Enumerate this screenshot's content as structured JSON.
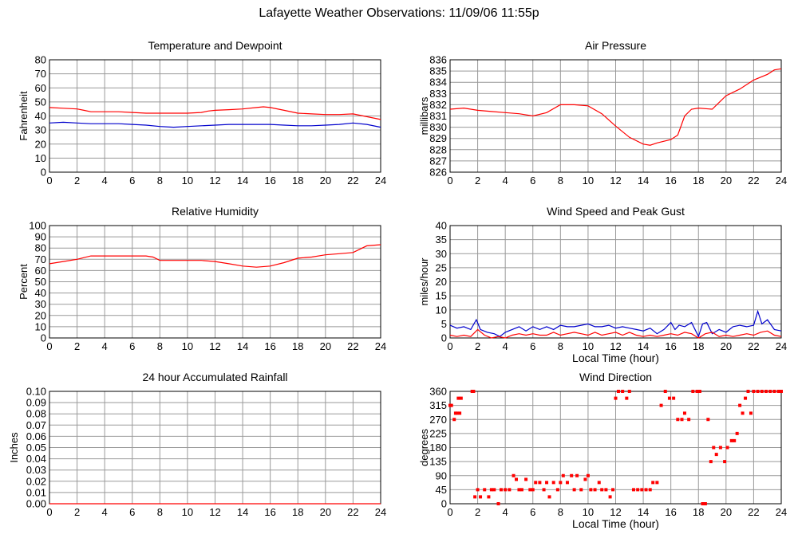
{
  "page": {
    "title": "Lafayette Weather Observations: 11/09/06 11:55p"
  },
  "colors": {
    "red": "#ff0000",
    "blue": "#0000cc",
    "grid": "#999999"
  },
  "chart_data": [
    {
      "id": "temp",
      "type": "line",
      "title": "Temperature and Dewpoint",
      "xlabel": "",
      "ylabel": "Fahrenheit",
      "xlim": [
        0,
        24
      ],
      "ylim": [
        0,
        80
      ],
      "yticks": [
        0,
        10,
        20,
        30,
        40,
        50,
        60,
        70,
        80
      ],
      "ytick_labels": [
        "0",
        "10",
        "20",
        "30",
        "40",
        "50",
        "60",
        "70",
        "80"
      ],
      "xticks": [
        0,
        2,
        4,
        6,
        8,
        10,
        12,
        14,
        16,
        18,
        20,
        22,
        24
      ],
      "grid": true,
      "series": [
        {
          "color": "#ff0000",
          "x": [
            0,
            1,
            2,
            2.5,
            3,
            4,
            5,
            6,
            7,
            8,
            9,
            10,
            11,
            11.5,
            12,
            13,
            14,
            15,
            15.5,
            16,
            17,
            18,
            19,
            20,
            21,
            22,
            23,
            24
          ],
          "y": [
            46,
            45.5,
            45,
            44,
            43,
            43,
            43,
            42.5,
            42,
            42,
            42,
            42,
            42.5,
            43.5,
            44,
            44.5,
            45,
            46,
            46.5,
            46,
            44,
            42,
            41.5,
            41,
            41,
            41.5,
            39.5,
            37.5
          ]
        },
        {
          "color": "#0000cc",
          "x": [
            0,
            1,
            2,
            3,
            4,
            5,
            6,
            7,
            8,
            9,
            10,
            11,
            12,
            13,
            14,
            15,
            16,
            17,
            18,
            19,
            20,
            21,
            22,
            23,
            24
          ],
          "y": [
            35,
            35.5,
            35,
            34.5,
            34.5,
            34.5,
            34,
            33.5,
            32.5,
            32,
            32.5,
            33,
            33.5,
            34,
            34,
            34,
            34,
            33.5,
            33,
            33,
            33.5,
            34,
            35,
            34,
            32
          ]
        }
      ]
    },
    {
      "id": "pressure",
      "type": "line",
      "title": "Air Pressure",
      "xlabel": "",
      "ylabel": "millibars",
      "xlim": [
        0,
        24
      ],
      "ylim": [
        826,
        836
      ],
      "yticks": [
        826,
        827,
        828,
        829,
        830,
        831,
        832,
        833,
        834,
        835,
        836
      ],
      "ytick_labels": [
        "826",
        "827",
        "828",
        "829",
        "830",
        "831",
        "832",
        "833",
        "834",
        "835",
        "836"
      ],
      "xticks": [
        0,
        2,
        4,
        6,
        8,
        10,
        12,
        14,
        16,
        18,
        20,
        22,
        24
      ],
      "grid": true,
      "series": [
        {
          "color": "#ff0000",
          "x": [
            0,
            1,
            2,
            3,
            4,
            5,
            6,
            7,
            8,
            9,
            10,
            11,
            12,
            13,
            14,
            14.5,
            15,
            16,
            16.5,
            17,
            17.5,
            18,
            19,
            20,
            21,
            22,
            23,
            23.5,
            24
          ],
          "y": [
            831.6,
            831.7,
            831.5,
            831.4,
            831.3,
            831.2,
            831.0,
            831.3,
            832.0,
            832.0,
            831.9,
            831.2,
            830.1,
            829.1,
            828.5,
            828.4,
            828.6,
            828.9,
            829.3,
            831.0,
            831.6,
            831.7,
            831.6,
            832.8,
            833.4,
            834.2,
            834.7,
            835.1,
            835.2
          ]
        }
      ]
    },
    {
      "id": "humidity",
      "type": "line",
      "title": "Relative Humidity",
      "xlabel": "",
      "ylabel": "Percent",
      "xlim": [
        0,
        24
      ],
      "ylim": [
        0,
        100
      ],
      "yticks": [
        0,
        10,
        20,
        30,
        40,
        50,
        60,
        70,
        80,
        90,
        100
      ],
      "ytick_labels": [
        "0",
        "10",
        "20",
        "30",
        "40",
        "50",
        "60",
        "70",
        "80",
        "90",
        "100"
      ],
      "xticks": [
        0,
        2,
        4,
        6,
        8,
        10,
        12,
        14,
        16,
        18,
        20,
        22,
        24
      ],
      "grid": true,
      "series": [
        {
          "color": "#ff0000",
          "x": [
            0,
            1,
            2,
            3,
            4,
            5,
            6,
            7,
            7.5,
            8,
            9,
            10,
            11,
            12,
            13,
            14,
            15,
            16,
            17,
            18,
            19,
            20,
            21,
            22,
            23,
            24
          ],
          "y": [
            66,
            68,
            70,
            73,
            73,
            73,
            73,
            73,
            72,
            69,
            69,
            69,
            69,
            68,
            66,
            64,
            63,
            64,
            67,
            71,
            72,
            74,
            75,
            76,
            82,
            83
          ]
        }
      ]
    },
    {
      "id": "wind",
      "type": "line",
      "title": "Wind Speed and Peak Gust",
      "xlabel": "Local Time (hour)",
      "ylabel": "miles/hour",
      "xlim": [
        0,
        24
      ],
      "ylim": [
        0,
        40
      ],
      "yticks": [
        0,
        5,
        10,
        15,
        20,
        25,
        30,
        35,
        40
      ],
      "ytick_labels": [
        "0",
        "5",
        "10",
        "15",
        "20",
        "25",
        "30",
        "35",
        "40"
      ],
      "xticks": [
        0,
        2,
        4,
        6,
        8,
        10,
        12,
        14,
        16,
        18,
        20,
        22,
        24
      ],
      "grid": true,
      "series": [
        {
          "color": "#0000cc",
          "x": [
            0,
            0.5,
            1,
            1.5,
            1.9,
            2.2,
            2.7,
            3.2,
            3.6,
            4,
            4.5,
            5,
            5.5,
            6,
            6.5,
            7,
            7.5,
            8,
            8.5,
            9,
            9.5,
            10,
            10.5,
            11,
            11.5,
            12,
            12.5,
            13,
            13.5,
            14,
            14.5,
            15,
            15.5,
            16,
            16.3,
            16.6,
            17,
            17.5,
            18,
            18.3,
            18.6,
            19,
            19.5,
            20,
            20.5,
            21,
            21.5,
            22,
            22.3,
            22.6,
            23,
            23.5,
            24
          ],
          "y": [
            4.5,
            3.5,
            4,
            3,
            6.5,
            3,
            2,
            1.5,
            0.5,
            2,
            3,
            4,
            2.5,
            4,
            3,
            4,
            3,
            4.5,
            4,
            4,
            4.5,
            5,
            4,
            4,
            4.5,
            3.5,
            4,
            3.5,
            3,
            2.5,
            3.5,
            1.5,
            3,
            5.5,
            3,
            4.5,
            4,
            5.5,
            0.5,
            5,
            5.5,
            1.5,
            3,
            2,
            4,
            4.5,
            4,
            4.5,
            9.5,
            5,
            6.5,
            3,
            2.5
          ]
        },
        {
          "color": "#ff0000",
          "x": [
            0,
            0.5,
            1,
            1.5,
            2,
            2.5,
            3,
            3.5,
            4,
            4.5,
            5,
            5.5,
            6,
            6.5,
            7,
            7.5,
            8,
            8.5,
            9,
            9.5,
            10,
            10.5,
            11,
            11.5,
            12,
            12.5,
            13,
            13.5,
            14,
            14.5,
            15,
            15.5,
            16,
            16.5,
            17,
            17.5,
            18,
            18.5,
            19,
            19.5,
            20,
            20.5,
            21,
            21.5,
            22,
            22.5,
            23,
            23.5,
            24
          ],
          "y": [
            1,
            0.5,
            1,
            0.5,
            3,
            1,
            0,
            0.5,
            0,
            1,
            1.5,
            1,
            1.5,
            1,
            1,
            2,
            1,
            1.5,
            2,
            1.5,
            1,
            2,
            1,
            1.5,
            2,
            1,
            2,
            1,
            0.5,
            1,
            0.5,
            1,
            1.5,
            1,
            2,
            1.5,
            0,
            1.5,
            2,
            0.5,
            1,
            0.5,
            1,
            1.5,
            1,
            2,
            2.5,
            1,
            0.5
          ]
        }
      ]
    },
    {
      "id": "rain",
      "type": "line",
      "title": "24 hour Accumulated Rainfall",
      "xlabel": "",
      "ylabel": "Inches",
      "xlim": [
        0,
        24
      ],
      "ylim": [
        0,
        0.1
      ],
      "yticks": [
        0,
        0.01,
        0.02,
        0.03,
        0.04,
        0.05,
        0.06,
        0.07,
        0.08,
        0.09,
        0.1
      ],
      "ytick_labels": [
        "0.00",
        "0.01",
        "0.02",
        "0.03",
        "0.04",
        "0.05",
        "0.06",
        "0.07",
        "0.08",
        "0.09",
        "0.10"
      ],
      "xticks": [
        0,
        2,
        4,
        6,
        8,
        10,
        12,
        14,
        16,
        18,
        20,
        22,
        24
      ],
      "grid": true,
      "series": [
        {
          "color": "#ff0000",
          "x": [
            0,
            24
          ],
          "y": [
            0,
            0
          ]
        }
      ]
    },
    {
      "id": "direction",
      "type": "scatter",
      "title": "Wind Direction",
      "xlabel": "Local Time (hour)",
      "ylabel": "degrees",
      "xlim": [
        0,
        24
      ],
      "ylim": [
        0,
        360
      ],
      "yticks": [
        0,
        45,
        90,
        135,
        180,
        225,
        270,
        315,
        360
      ],
      "ytick_labels": [
        "0",
        "45",
        "90",
        "135",
        "180",
        "225",
        "270",
        "315",
        "360"
      ],
      "xticks": [
        0,
        2,
        4,
        6,
        8,
        10,
        12,
        14,
        16,
        18,
        20,
        22,
        24
      ],
      "grid": true,
      "series": [
        {
          "color": "#ff0000",
          "x": [
            0,
            0.1,
            0.3,
            0.4,
            0.5,
            0.6,
            0.7,
            0.8,
            1.6,
            1.7,
            1.8,
            2.0,
            2.2,
            2.5,
            2.8,
            3.0,
            3.2,
            3.5,
            3.7,
            4.0,
            4.3,
            4.6,
            4.8,
            5.0,
            5.2,
            5.5,
            5.8,
            6.0,
            6.2,
            6.5,
            6.8,
            7.0,
            7.2,
            7.5,
            7.8,
            8.0,
            8.2,
            8.5,
            8.8,
            9.0,
            9.2,
            9.5,
            9.8,
            10.0,
            10.2,
            10.5,
            10.8,
            11.0,
            11.3,
            11.6,
            11.8,
            12.0,
            12.2,
            12.5,
            12.8,
            13.0,
            13.3,
            13.6,
            13.9,
            14.2,
            14.5,
            14.7,
            15.0,
            15.3,
            15.6,
            15.9,
            16.2,
            16.5,
            16.8,
            17.0,
            17.3,
            17.6,
            17.9,
            18.1,
            18.3,
            18.5,
            18.7,
            18.9,
            19.1,
            19.3,
            19.6,
            19.9,
            20.1,
            20.4,
            20.6,
            20.8,
            21.0,
            21.2,
            21.4,
            21.6,
            21.8,
            22.0,
            22.3,
            22.6,
            22.9,
            23.2,
            23.5,
            23.8,
            24.0
          ],
          "y": [
            315,
            315,
            270,
            290,
            290,
            338,
            290,
            338,
            360,
            360,
            22,
            45,
            22,
            45,
            22,
            45,
            45,
            0,
            45,
            45,
            45,
            90,
            78,
            45,
            45,
            78,
            45,
            45,
            68,
            68,
            45,
            68,
            22,
            68,
            45,
            68,
            90,
            68,
            90,
            45,
            90,
            45,
            78,
            90,
            45,
            45,
            68,
            45,
            45,
            22,
            45,
            338,
            360,
            360,
            338,
            360,
            45,
            45,
            45,
            45,
            45,
            68,
            68,
            315,
            360,
            338,
            338,
            270,
            270,
            290,
            270,
            360,
            360,
            360,
            0,
            0,
            270,
            135,
            180,
            158,
            180,
            135,
            180,
            202,
            202,
            225,
            315,
            290,
            338,
            360,
            290,
            360,
            360,
            360,
            360,
            360,
            360,
            360,
            360
          ]
        }
      ]
    }
  ]
}
